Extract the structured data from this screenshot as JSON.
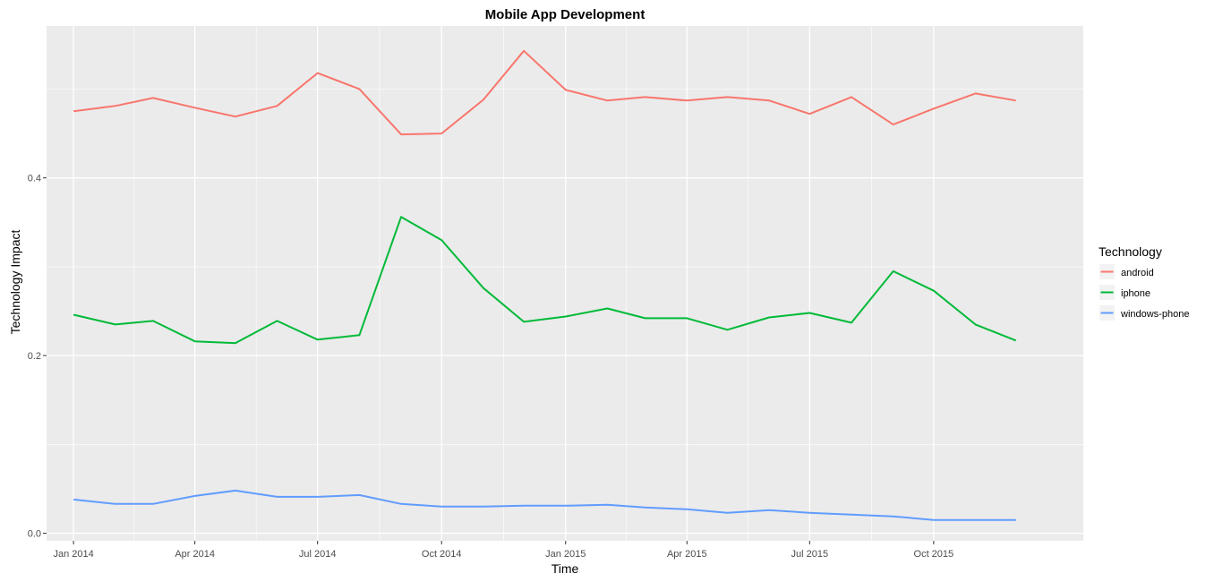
{
  "chart_data": {
    "type": "line",
    "title": "Mobile App Development",
    "xlabel": "Time",
    "ylabel": "Technology Impact",
    "x": [
      "2014-01",
      "2014-02",
      "2014-03",
      "2014-04",
      "2014-05",
      "2014-06",
      "2014-07",
      "2014-08",
      "2014-09",
      "2014-10",
      "2014-11",
      "2014-12",
      "2015-01",
      "2015-02",
      "2015-03",
      "2015-04",
      "2015-05",
      "2015-06",
      "2015-07",
      "2015-08",
      "2015-09",
      "2015-10",
      "2015-11",
      "2015-12"
    ],
    "x_range": [
      "2013-12-12",
      "2016-01-20"
    ],
    "ylim": [
      -0.0085,
      0.571
    ],
    "x_ticks": [
      {
        "date": "2014-01",
        "label": "Jan 2014"
      },
      {
        "date": "2014-04",
        "label": "Apr 2014"
      },
      {
        "date": "2014-07",
        "label": "Jul 2014"
      },
      {
        "date": "2014-10",
        "label": "Oct 2014"
      },
      {
        "date": "2015-01",
        "label": "Jan 2015"
      },
      {
        "date": "2015-04",
        "label": "Apr 2015"
      },
      {
        "date": "2015-07",
        "label": "Jul 2015"
      },
      {
        "date": "2015-10",
        "label": "Oct 2015"
      }
    ],
    "y_ticks": [
      {
        "value": 0.0,
        "label": "0.0"
      },
      {
        "value": 0.2,
        "label": "0.2"
      },
      {
        "value": 0.4,
        "label": "0.4"
      }
    ],
    "y_minor_ticks": [
      0.1,
      0.3,
      0.5
    ],
    "grid": true,
    "panel_background": "#ebebeb",
    "grid_color": "#ffffff",
    "legend": {
      "title": "Technology",
      "position": "right"
    },
    "series": [
      {
        "name": "android",
        "color": "#f8766d",
        "values": [
          0.475,
          0.481,
          0.49,
          0.479,
          0.469,
          0.481,
          0.518,
          0.5,
          0.449,
          0.45,
          0.488,
          0.543,
          0.499,
          0.487,
          0.491,
          0.487,
          0.491,
          0.487,
          0.472,
          0.491,
          0.46,
          0.478,
          0.495,
          0.487
        ]
      },
      {
        "name": "iphone",
        "color": "#00ba38",
        "values": [
          0.246,
          0.235,
          0.239,
          0.216,
          0.214,
          0.239,
          0.218,
          0.223,
          0.356,
          0.33,
          0.276,
          0.238,
          0.244,
          0.253,
          0.242,
          0.242,
          0.229,
          0.243,
          0.248,
          0.237,
          0.295,
          0.273,
          0.235,
          0.217
        ]
      },
      {
        "name": "windows-phone",
        "color": "#619cff",
        "values": [
          0.038,
          0.033,
          0.033,
          0.042,
          0.048,
          0.041,
          0.041,
          0.043,
          0.033,
          0.03,
          0.03,
          0.031,
          0.031,
          0.032,
          0.029,
          0.027,
          0.023,
          0.026,
          0.023,
          0.021,
          0.019,
          0.015,
          0.015,
          0.015
        ]
      }
    ]
  }
}
